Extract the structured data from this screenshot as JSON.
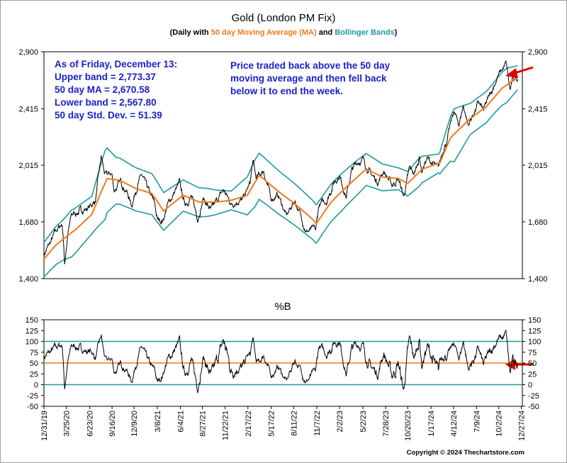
{
  "chart_data": [
    {
      "type": "line",
      "title": "Gold (London PM Fix)",
      "subtitle": {
        "prefix": "(Daily with ",
        "ma": "50 day Moving Average (MA)",
        "and": " and ",
        "bb": "Bollinger Bands",
        "suffix": ")"
      },
      "y_scale": "log",
      "ylim": [
        1400,
        2900
      ],
      "yticks": [
        "2,900",
        "2,415",
        "2,015",
        "1,680",
        "1,400"
      ],
      "ytick_values": [
        2900,
        2415,
        2015,
        1680,
        1400
      ],
      "x_range": [
        "2019-12-31",
        "2024-12-31"
      ],
      "grid": false,
      "colors": {
        "price": "#000000",
        "ma": "#f07a1e",
        "bands": "#1f9b9b"
      },
      "anchors": [
        [
          "2019-12-31",
          1515
        ],
        [
          "2020-01-20",
          1560
        ],
        [
          "2020-02-20",
          1640
        ],
        [
          "2020-03-10",
          1670
        ],
        [
          "2020-03-19",
          1475
        ],
        [
          "2020-03-31",
          1610
        ],
        [
          "2020-04-15",
          1720
        ],
        [
          "2020-05-20",
          1740
        ],
        [
          "2020-06-20",
          1760
        ],
        [
          "2020-07-15",
          1800
        ],
        [
          "2020-08-06",
          2067
        ],
        [
          "2020-08-20",
          1950
        ],
        [
          "2020-09-15",
          1960
        ],
        [
          "2020-09-24",
          1860
        ],
        [
          "2020-10-20",
          1910
        ],
        [
          "2020-11-09",
          1860
        ],
        [
          "2020-11-30",
          1770
        ],
        [
          "2020-12-15",
          1860
        ],
        [
          "2021-01-06",
          1950
        ],
        [
          "2021-02-01",
          1860
        ],
        [
          "2021-02-25",
          1780
        ],
        [
          "2021-03-08",
          1690
        ],
        [
          "2021-03-30",
          1690
        ],
        [
          "2021-04-15",
          1770
        ],
        [
          "2021-05-10",
          1840
        ],
        [
          "2021-06-01",
          1900
        ],
        [
          "2021-06-20",
          1780
        ],
        [
          "2021-07-15",
          1820
        ],
        [
          "2021-08-09",
          1700
        ],
        [
          "2021-08-31",
          1810
        ],
        [
          "2021-09-29",
          1740
        ],
        [
          "2021-11-15",
          1860
        ],
        [
          "2021-12-15",
          1780
        ],
        [
          "2022-01-10",
          1800
        ],
        [
          "2022-01-28",
          1800
        ],
        [
          "2022-02-25",
          1900
        ],
        [
          "2022-03-08",
          2039
        ],
        [
          "2022-03-20",
          1930
        ],
        [
          "2022-04-18",
          1980
        ],
        [
          "2022-05-16",
          1810
        ],
        [
          "2022-06-13",
          1830
        ],
        [
          "2022-07-14",
          1710
        ],
        [
          "2022-08-15",
          1800
        ],
        [
          "2022-09-28",
          1630
        ],
        [
          "2022-10-20",
          1640
        ],
        [
          "2022-11-03",
          1630
        ],
        [
          "2022-11-15",
          1770
        ],
        [
          "2022-12-15",
          1800
        ],
        [
          "2023-01-15",
          1920
        ],
        [
          "2023-02-02",
          1950
        ],
        [
          "2023-02-28",
          1820
        ],
        [
          "2023-03-20",
          1980
        ],
        [
          "2023-04-13",
          2040
        ],
        [
          "2023-05-04",
          2050
        ],
        [
          "2023-05-31",
          1960
        ],
        [
          "2023-06-29",
          1910
        ],
        [
          "2023-07-20",
          1980
        ],
        [
          "2023-08-21",
          1890
        ],
        [
          "2023-09-15",
          1930
        ],
        [
          "2023-10-05",
          1820
        ],
        [
          "2023-10-27",
          1990
        ],
        [
          "2023-11-15",
          1960
        ],
        [
          "2023-12-04",
          2070
        ],
        [
          "2023-12-13",
          1980
        ],
        [
          "2024-01-02",
          2060
        ],
        [
          "2024-02-14",
          1990
        ],
        [
          "2024-03-05",
          2130
        ],
        [
          "2024-03-20",
          2190
        ],
        [
          "2024-04-12",
          2390
        ],
        [
          "2024-05-03",
          2300
        ],
        [
          "2024-05-20",
          2440
        ],
        [
          "2024-06-07",
          2290
        ],
        [
          "2024-07-17",
          2460
        ],
        [
          "2024-08-05",
          2400
        ],
        [
          "2024-09-26",
          2670
        ],
        [
          "2024-10-30",
          2790
        ],
        [
          "2024-11-14",
          2560
        ],
        [
          "2024-11-25",
          2650
        ],
        [
          "2024-12-13",
          2670
        ]
      ],
      "ma_anchors": [
        [
          "2019-12-31",
          1490
        ],
        [
          "2020-02-15",
          1560
        ],
        [
          "2020-05-01",
          1640
        ],
        [
          "2020-07-01",
          1720
        ],
        [
          "2020-08-28",
          1930
        ],
        [
          "2020-10-15",
          1920
        ],
        [
          "2020-12-15",
          1870
        ],
        [
          "2021-02-15",
          1840
        ],
        [
          "2021-04-01",
          1740
        ],
        [
          "2021-06-15",
          1830
        ],
        [
          "2021-08-15",
          1790
        ],
        [
          "2021-10-15",
          1790
        ],
        [
          "2021-12-15",
          1800
        ],
        [
          "2022-02-15",
          1830
        ],
        [
          "2022-04-01",
          1950
        ],
        [
          "2022-06-15",
          1850
        ],
        [
          "2022-08-15",
          1780
        ],
        [
          "2022-10-25",
          1690
        ],
        [
          "2022-11-05",
          1670
        ],
        [
          "2023-01-01",
          1790
        ],
        [
          "2023-03-01",
          1880
        ],
        [
          "2023-05-15",
          1990
        ],
        [
          "2023-07-15",
          1940
        ],
        [
          "2023-09-15",
          1930
        ],
        [
          "2023-10-20",
          1900
        ],
        [
          "2023-12-15",
          1990
        ],
        [
          "2024-02-20",
          2030
        ],
        [
          "2024-04-01",
          2200
        ],
        [
          "2024-06-15",
          2340
        ],
        [
          "2024-08-15",
          2430
        ],
        [
          "2024-10-15",
          2580
        ],
        [
          "2024-12-13",
          2670.58
        ]
      ],
      "bandwidth_anchors": [
        [
          "2019-12-31",
          0.055
        ],
        [
          "2020-03-15",
          0.065
        ],
        [
          "2020-04-15",
          0.075
        ],
        [
          "2020-07-01",
          0.06
        ],
        [
          "2020-08-20",
          0.11
        ],
        [
          "2020-10-01",
          0.075
        ],
        [
          "2020-12-01",
          0.07
        ],
        [
          "2021-03-01",
          0.065
        ],
        [
          "2021-06-15",
          0.05
        ],
        [
          "2021-09-15",
          0.045
        ],
        [
          "2021-12-15",
          0.03
        ],
        [
          "2022-03-15",
          0.075
        ],
        [
          "2022-06-01",
          0.07
        ],
        [
          "2022-09-15",
          0.065
        ],
        [
          "2022-12-01",
          0.06
        ],
        [
          "2023-02-01",
          0.06
        ],
        [
          "2023-04-15",
          0.055
        ],
        [
          "2023-07-01",
          0.045
        ],
        [
          "2023-09-15",
          0.035
        ],
        [
          "2023-12-01",
          0.045
        ],
        [
          "2024-02-15",
          0.03
        ],
        [
          "2024-04-15",
          0.085
        ],
        [
          "2024-06-15",
          0.05
        ],
        [
          "2024-09-15",
          0.05
        ],
        [
          "2024-11-01",
          0.055
        ],
        [
          "2024-12-13",
          0.0385
        ]
      ],
      "last_value": {
        "upper": 2773.37,
        "ma": 2670.58,
        "lower": 2567.8
      },
      "annotations": {
        "stats": [
          "As of Friday, December 13:",
          "Upper band = 2,773.37",
          "50 day MA = 2,670.58",
          "Lower band = 2,567.80",
          "50 day Std. Dev. = 51.39"
        ],
        "note": [
          "Price traded back above the 50 day",
          "moving average and then fell back",
          "below it to end the week."
        ]
      }
    },
    {
      "type": "line",
      "title": "%B",
      "ylim": [
        -50,
        150
      ],
      "yticks": [
        "150",
        "125",
        "100",
        "75",
        "50",
        "25",
        "0",
        "-25",
        "-50"
      ],
      "ytick_values": [
        150,
        125,
        100,
        75,
        50,
        25,
        0,
        -25,
        -50
      ],
      "reference_lines": [
        100,
        50,
        0
      ],
      "x_labels": [
        "12/31/19",
        "3/25/20",
        "6/23/20",
        "9/16/20",
        "12/9/20",
        "3/8/21",
        "6/4/21",
        "8/27/21",
        "11/22/21",
        "2/17/22",
        "5/17/22",
        "8/11/22",
        "11/7/22",
        "2/2/23",
        "5/2/23",
        "7/28/23",
        "10/20/23",
        "1/17/24",
        "4/12/24",
        "7/9/24",
        "10/2/24",
        "12/27/24"
      ],
      "x_label_dates": [
        "2019-12-31",
        "2020-03-25",
        "2020-06-23",
        "2020-09-16",
        "2020-12-09",
        "2021-03-08",
        "2021-06-04",
        "2021-08-27",
        "2021-11-22",
        "2022-02-17",
        "2022-05-17",
        "2022-08-11",
        "2022-11-07",
        "2023-02-02",
        "2023-05-02",
        "2023-07-28",
        "2023-10-20",
        "2024-01-17",
        "2024-04-12",
        "2024-07-09",
        "2024-10-02",
        "2024-12-27"
      ],
      "last_value": 50
    }
  ],
  "copyright": "Copyright © 2024 Thechartstore.com"
}
